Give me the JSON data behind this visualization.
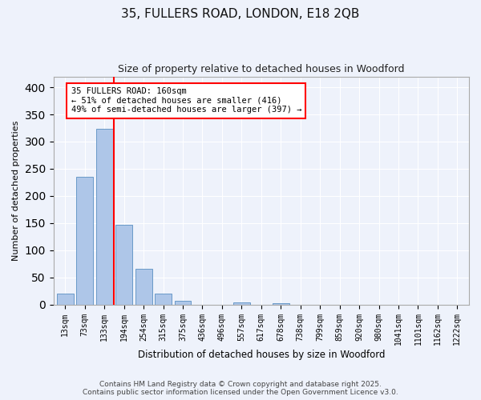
{
  "title1": "35, FULLERS ROAD, LONDON, E18 2QB",
  "title2": "Size of property relative to detached houses in Woodford",
  "xlabel": "Distribution of detached houses by size in Woodford",
  "ylabel": "Number of detached properties",
  "categories": [
    "13sqm",
    "73sqm",
    "133sqm",
    "194sqm",
    "254sqm",
    "315sqm",
    "375sqm",
    "436sqm",
    "496sqm",
    "557sqm",
    "617sqm",
    "678sqm",
    "738sqm",
    "799sqm",
    "859sqm",
    "920sqm",
    "980sqm",
    "1041sqm",
    "1101sqm",
    "1162sqm",
    "1222sqm"
  ],
  "values": [
    20,
    235,
    323,
    147,
    65,
    20,
    7,
    0,
    0,
    4,
    0,
    3,
    0,
    0,
    0,
    0,
    0,
    0,
    0,
    0,
    0
  ],
  "bar_color": "#aec6e8",
  "bar_edge_color": "#5a8fc2",
  "red_line_x": 2.5,
  "annotation_text": "35 FULLERS ROAD: 160sqm\n← 51% of detached houses are smaller (416)\n49% of semi-detached houses are larger (397) →",
  "annotation_box_color": "white",
  "annotation_box_edge": "red",
  "ylim": [
    0,
    420
  ],
  "yticks": [
    0,
    50,
    100,
    150,
    200,
    250,
    300,
    350,
    400
  ],
  "footer1": "Contains HM Land Registry data © Crown copyright and database right 2025.",
  "footer2": "Contains public sector information licensed under the Open Government Licence v3.0.",
  "bg_color": "#eef2fb",
  "grid_color": "white"
}
